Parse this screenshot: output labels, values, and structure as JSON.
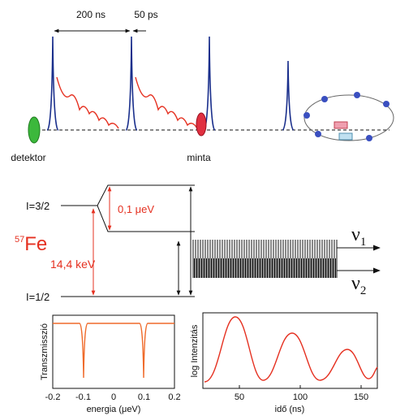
{
  "timing": {
    "period_label": "200 ns",
    "pulse_label": "50 ps",
    "detector_label": "detektor",
    "sample_label": "minta"
  },
  "levels": {
    "excited_label": "I=3/2",
    "ground_label": "I=1/2",
    "splitting_label": "0,1 μeV",
    "transition_label": "14,4 keV",
    "isotope": {
      "mass": "57",
      "symbol": "Fe"
    },
    "nu1": {
      "symbol": "ν",
      "index": "1"
    },
    "nu2": {
      "symbol": "ν",
      "index": "2"
    }
  },
  "energy_plot": {
    "y_label": "Transzmisszió",
    "x_label": "energia (μeV)",
    "xticks": [
      "-0.2",
      "-0.1",
      "0",
      "0.1",
      "0.2"
    ]
  },
  "time_plot": {
    "y_label": "log Intenzitás",
    "x_label": "idő (ns)",
    "xticks": [
      "50",
      "100",
      "150"
    ]
  }
}
